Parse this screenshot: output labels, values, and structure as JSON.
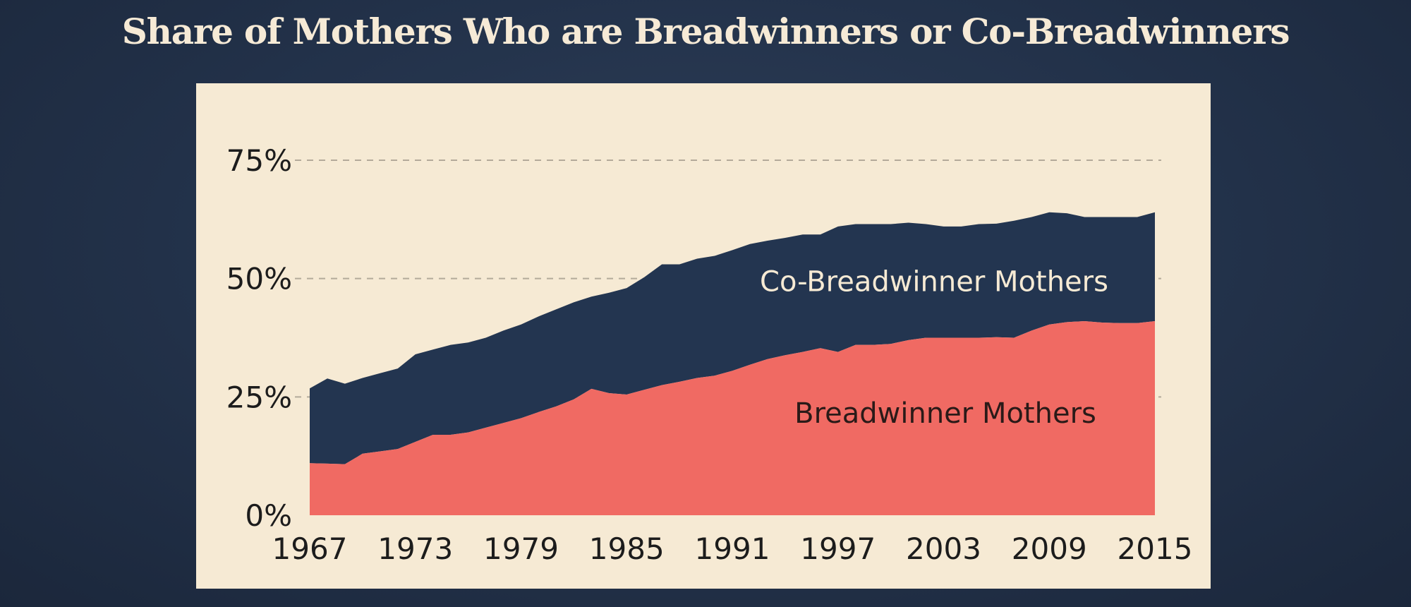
{
  "colors": {
    "background": "#223149",
    "panel": "#f6ead4",
    "title": "#f6ead6",
    "breadwinner": "#f06a63",
    "co_breadwinner": "#233550",
    "gridline": "#b3aa9a",
    "co_label": "#f6ead4",
    "bw_label": "#2a1a18"
  },
  "chart_data": {
    "type": "area",
    "stacked": true,
    "title": "Share of Mothers Who are Breadwinners or Co-Breadwinners",
    "xlabel": "",
    "ylabel": "",
    "ylim": [
      0,
      75
    ],
    "xlim": [
      1967,
      2015
    ],
    "yticks": [
      0,
      25,
      50,
      75
    ],
    "ytick_labels": [
      "0%",
      "25%",
      "50%",
      "75%"
    ],
    "xticks": [
      1967,
      1973,
      1979,
      1985,
      1991,
      1997,
      2003,
      2009,
      2015
    ],
    "xtick_labels": [
      "1967",
      "1973",
      "1979",
      "1985",
      "1991",
      "1997",
      "2003",
      "2009",
      "2015"
    ],
    "grid": true,
    "legend": "inline labels",
    "x": [
      1967,
      1968,
      1969,
      1970,
      1971,
      1972,
      1973,
      1974,
      1975,
      1976,
      1977,
      1978,
      1979,
      1980,
      1981,
      1982,
      1983,
      1984,
      1985,
      1986,
      1987,
      1988,
      1989,
      1990,
      1991,
      1992,
      1993,
      1994,
      1995,
      1996,
      1997,
      1998,
      1999,
      2000,
      2001,
      2002,
      2003,
      2004,
      2005,
      2006,
      2007,
      2008,
      2009,
      2010,
      2011,
      2012,
      2013,
      2014,
      2015
    ],
    "series": [
      {
        "name": "Breadwinner Mothers",
        "values": [
          11.0,
          10.9,
          10.8,
          13.0,
          13.5,
          14.0,
          15.5,
          17.0,
          17.0,
          17.5,
          18.5,
          19.5,
          20.5,
          21.8,
          23.0,
          24.5,
          26.7,
          25.8,
          25.5,
          26.5,
          27.5,
          28.2,
          29.0,
          29.5,
          30.5,
          31.8,
          33.0,
          33.8,
          34.5,
          35.3,
          34.5,
          36.0,
          36.0,
          36.2,
          37.0,
          37.5,
          37.5,
          37.5,
          37.5,
          37.6,
          37.5,
          39.0,
          40.3,
          40.8,
          41.0,
          40.7,
          40.6,
          40.6,
          41.0
        ]
      },
      {
        "name": "Co-Breadwinner Mothers",
        "values": [
          15.8,
          18.0,
          17.0,
          16.0,
          16.5,
          17.0,
          18.5,
          18.0,
          19.0,
          19.0,
          19.0,
          19.5,
          19.8,
          20.2,
          20.5,
          20.5,
          19.5,
          21.2,
          22.5,
          23.8,
          25.5,
          24.8,
          25.2,
          25.3,
          25.5,
          25.5,
          25.0,
          24.8,
          24.8,
          24.0,
          26.5,
          25.5,
          25.5,
          25.3,
          24.8,
          24.0,
          23.5,
          23.5,
          24.0,
          24.0,
          24.7,
          24.0,
          23.7,
          23.0,
          22.0,
          22.3,
          22.4,
          22.4,
          23.0
        ]
      }
    ]
  }
}
